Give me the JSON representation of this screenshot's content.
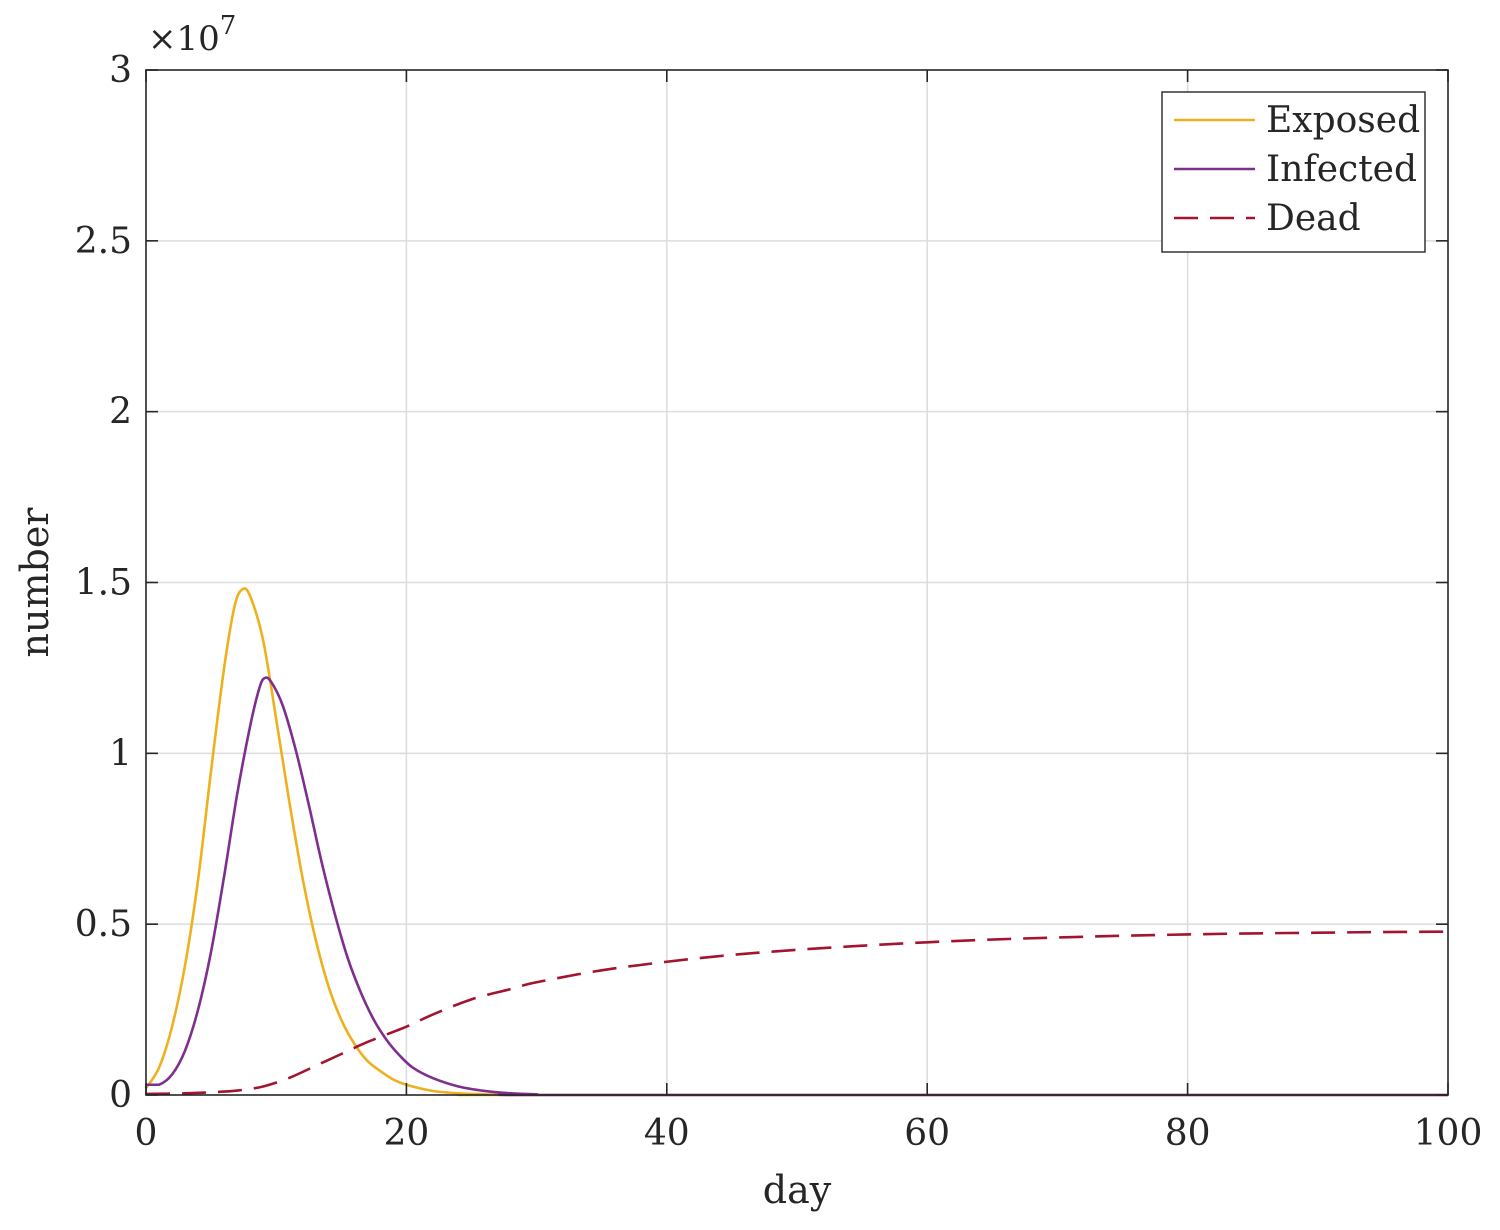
{
  "chart_data": {
    "type": "line",
    "title": "",
    "xlabel": "day",
    "ylabel": "number",
    "xlim": [
      0,
      100
    ],
    "ylim": [
      0,
      3
    ],
    "y_exponent": "×10",
    "y_exponent_power": "7",
    "x_ticks": [
      0,
      20,
      40,
      60,
      80,
      100
    ],
    "x_tick_labels": [
      "0",
      "20",
      "40",
      "60",
      "80",
      "100"
    ],
    "y_ticks": [
      0,
      0.5,
      1,
      1.5,
      2,
      2.5,
      3
    ],
    "y_tick_labels": [
      "0",
      "0.5",
      "1",
      "1.5",
      "2",
      "2.5",
      "3"
    ],
    "grid": true,
    "legend_position": "top-right",
    "series": [
      {
        "name": "Exposed",
        "color": "#EDB120",
        "dash": "solid",
        "points": [
          [
            0,
            0.02
          ],
          [
            1,
            0.08
          ],
          [
            2,
            0.2
          ],
          [
            3,
            0.38
          ],
          [
            4,
            0.63
          ],
          [
            5,
            0.95
          ],
          [
            6,
            1.25
          ],
          [
            6.8,
            1.43
          ],
          [
            7.4,
            1.48
          ],
          [
            8,
            1.46
          ],
          [
            9,
            1.33
          ],
          [
            10,
            1.1
          ],
          [
            11,
            0.86
          ],
          [
            12,
            0.64
          ],
          [
            13,
            0.46
          ],
          [
            14,
            0.32
          ],
          [
            15,
            0.22
          ],
          [
            16,
            0.15
          ],
          [
            17,
            0.1
          ],
          [
            18,
            0.07
          ],
          [
            19,
            0.045
          ],
          [
            20,
            0.03
          ],
          [
            22,
            0.012
          ],
          [
            24,
            0.005
          ],
          [
            27,
            0.001
          ],
          [
            30,
            0.0
          ],
          [
            100,
            0.0
          ]
        ]
      },
      {
        "name": "Infected",
        "color": "#7E2F8E",
        "dash": "solid",
        "points": [
          [
            0,
            0.03
          ],
          [
            1,
            0.03
          ],
          [
            2,
            0.06
          ],
          [
            3,
            0.13
          ],
          [
            4,
            0.25
          ],
          [
            5,
            0.42
          ],
          [
            6,
            0.64
          ],
          [
            7,
            0.88
          ],
          [
            8,
            1.08
          ],
          [
            8.7,
            1.19
          ],
          [
            9.1,
            1.22
          ],
          [
            9.6,
            1.21
          ],
          [
            10.5,
            1.14
          ],
          [
            11.5,
            1.01
          ],
          [
            12.5,
            0.85
          ],
          [
            13.5,
            0.68
          ],
          [
            14.5,
            0.53
          ],
          [
            15.5,
            0.4
          ],
          [
            16.5,
            0.3
          ],
          [
            17.5,
            0.22
          ],
          [
            18.5,
            0.16
          ],
          [
            19.5,
            0.115
          ],
          [
            20.5,
            0.08
          ],
          [
            22,
            0.05
          ],
          [
            24,
            0.025
          ],
          [
            26,
            0.012
          ],
          [
            28,
            0.005
          ],
          [
            30,
            0.002
          ],
          [
            33,
            0.0
          ],
          [
            100,
            0.0
          ]
        ]
      },
      {
        "name": "Dead",
        "color": "#A2142F",
        "dash": "dashed",
        "points": [
          [
            0,
            0.003
          ],
          [
            3,
            0.005
          ],
          [
            5,
            0.008
          ],
          [
            7,
            0.013
          ],
          [
            9,
            0.025
          ],
          [
            11,
            0.05
          ],
          [
            13,
            0.085
          ],
          [
            15,
            0.12
          ],
          [
            17,
            0.155
          ],
          [
            20,
            0.2
          ],
          [
            22,
            0.235
          ],
          [
            25,
            0.28
          ],
          [
            28,
            0.31
          ],
          [
            30,
            0.33
          ],
          [
            35,
            0.365
          ],
          [
            40,
            0.39
          ],
          [
            45,
            0.41
          ],
          [
            50,
            0.425
          ],
          [
            55,
            0.437
          ],
          [
            60,
            0.447
          ],
          [
            65,
            0.455
          ],
          [
            70,
            0.461
          ],
          [
            75,
            0.466
          ],
          [
            80,
            0.47
          ],
          [
            85,
            0.473
          ],
          [
            90,
            0.475
          ],
          [
            95,
            0.477
          ],
          [
            100,
            0.478
          ]
        ]
      }
    ]
  }
}
